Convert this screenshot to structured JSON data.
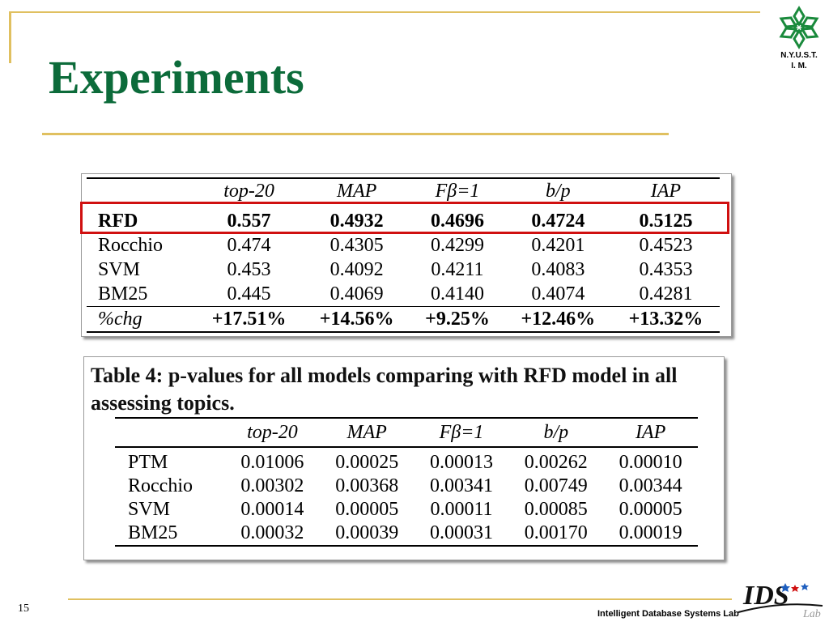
{
  "slide": {
    "title": "Experiments",
    "page_number": "15",
    "footer": "Intelligent Database Systems Lab",
    "logo_top_text_line1": "N.Y.U.S.T.",
    "logo_top_text_line2": "I. M.",
    "logo_bottom_text": "IDS",
    "logo_bottom_small": "Lab"
  },
  "table1": {
    "headers": [
      "",
      "top-20",
      "MAP",
      "Fβ=1",
      "b/p",
      "IAP"
    ],
    "rows": [
      [
        "RFD",
        "0.557",
        "0.4932",
        "0.4696",
        "0.4724",
        "0.5125"
      ],
      [
        "Rocchio",
        "0.474",
        "0.4305",
        "0.4299",
        "0.4201",
        "0.4523"
      ],
      [
        "SVM",
        "0.453",
        "0.4092",
        "0.4211",
        "0.4083",
        "0.4353"
      ],
      [
        "BM25",
        "0.445",
        "0.4069",
        "0.4140",
        "0.4074",
        "0.4281"
      ],
      [
        "%chg",
        "+17.51%",
        "+14.56%",
        "+9.25%",
        "+12.46%",
        "+13.32%"
      ]
    ]
  },
  "table2": {
    "caption": "Table 4: p-values for all models comparing with RFD model in all assessing topics.",
    "headers": [
      "",
      "top-20",
      "MAP",
      "Fβ=1",
      "b/p",
      "IAP"
    ],
    "rows": [
      [
        "PTM",
        "0.01006",
        "0.00025",
        "0.00013",
        "0.00262",
        "0.00010"
      ],
      [
        "Rocchio",
        "0.00302",
        "0.00368",
        "0.00341",
        "0.00749",
        "0.00344"
      ],
      [
        "SVM",
        "0.00014",
        "0.00005",
        "0.00011",
        "0.00085",
        "0.00005"
      ],
      [
        "BM25",
        "0.00032",
        "0.00039",
        "0.00031",
        "0.00170",
        "0.00019"
      ]
    ]
  },
  "colors": {
    "title": "#0c6b3a",
    "accent_line": "#e0c060",
    "highlight": "#d01010",
    "logo_green": "#1a8a3c"
  }
}
